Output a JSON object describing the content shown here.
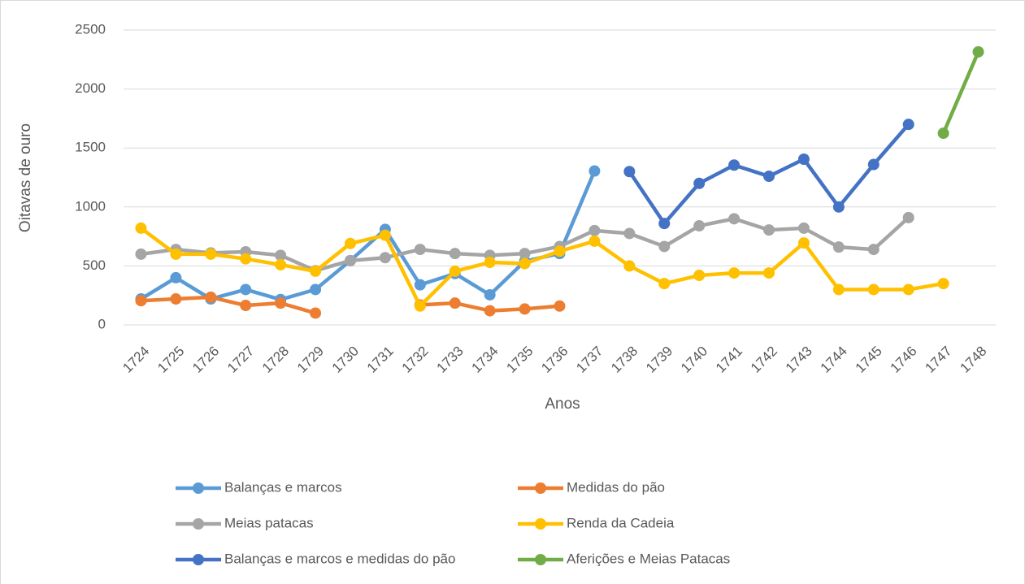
{
  "chart_data": {
    "type": "line",
    "x_label": "Anos",
    "y_label": "Oitavas de ouro",
    "categories": [
      "1724",
      "1725",
      "1726",
      "1727",
      "1728",
      "1729",
      "1730",
      "1731",
      "1732",
      "1733",
      "1734",
      "1735",
      "1736",
      "1737",
      "1738",
      "1739",
      "1740",
      "1741",
      "1742",
      "1743",
      "1744",
      "1745",
      "1746",
      "1747",
      "1748"
    ],
    "series": [
      {
        "name": "Balanças e marcos",
        "color": "#5b9bd5",
        "values": [
          220,
          400,
          220,
          300,
          215,
          300,
          545,
          810,
          340,
          435,
          255,
          540,
          605,
          1305,
          null,
          null,
          null,
          null,
          null,
          null,
          null,
          null,
          null,
          null,
          null
        ]
      },
      {
        "name": "Medidas do pão",
        "color": "#ed7d31",
        "values": [
          205,
          220,
          235,
          165,
          185,
          100,
          null,
          null,
          170,
          185,
          120,
          135,
          160,
          null,
          null,
          null,
          null,
          null,
          null,
          null,
          null,
          null,
          null,
          null,
          null
        ]
      },
      {
        "name": "Meias patacas",
        "color": "#a5a5a5",
        "values": [
          600,
          640,
          610,
          620,
          590,
          460,
          545,
          570,
          640,
          605,
          590,
          605,
          665,
          800,
          775,
          665,
          840,
          900,
          805,
          820,
          660,
          640,
          910,
          null,
          null
        ]
      },
      {
        "name": "Renda da Cadeia",
        "color": "#ffc000",
        "values": [
          820,
          600,
          600,
          560,
          510,
          455,
          690,
          760,
          160,
          455,
          530,
          520,
          625,
          710,
          500,
          350,
          420,
          440,
          440,
          695,
          300,
          300,
          300,
          350,
          null
        ]
      },
      {
        "name": "Balanças e marcos e medidas do pão",
        "color": "#4472c4",
        "values": [
          null,
          null,
          null,
          null,
          null,
          null,
          null,
          null,
          null,
          null,
          null,
          null,
          null,
          null,
          1300,
          860,
          1200,
          1355,
          1260,
          1405,
          1000,
          1360,
          1700,
          null,
          null
        ]
      },
      {
        "name": "Aferições e Meias Patacas",
        "color": "#70ad47",
        "values": [
          null,
          null,
          null,
          null,
          null,
          null,
          null,
          null,
          null,
          null,
          null,
          null,
          null,
          null,
          null,
          null,
          null,
          null,
          null,
          null,
          null,
          null,
          null,
          1625,
          2315
        ]
      }
    ],
    "ylim": [
      0,
      2500
    ],
    "yticks": [
      0,
      500,
      1000,
      1500,
      2000,
      2500
    ],
    "grid": true,
    "legend": "bottom"
  }
}
